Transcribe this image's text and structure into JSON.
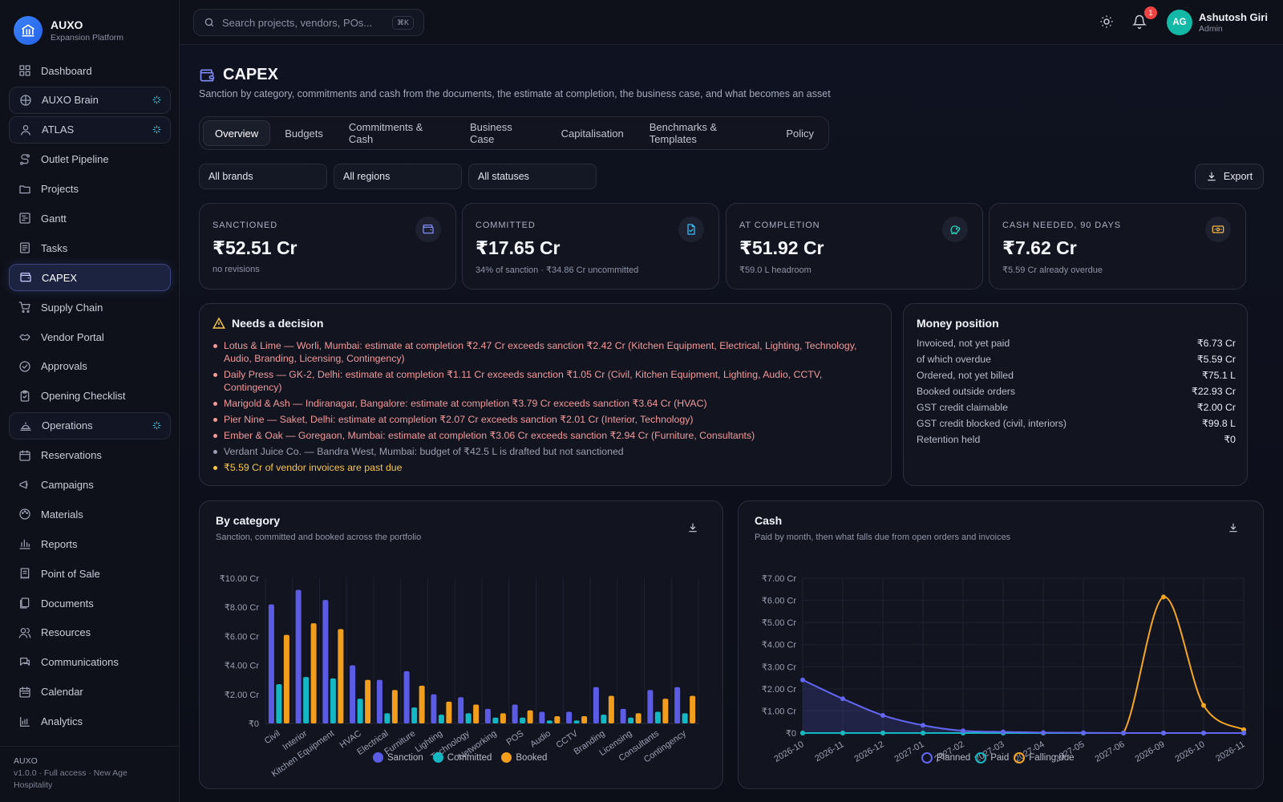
{
  "brand": {
    "name": "AUXO",
    "subtitle": "Expansion Platform"
  },
  "nav": [
    {
      "label": "Dashboard",
      "icon": "grid-icon"
    },
    {
      "label": "AUXO Brain",
      "icon": "brain-icon",
      "boxed": true,
      "spark": true
    },
    {
      "label": "ATLAS",
      "icon": "user-icon",
      "boxed": true,
      "spark": true
    },
    {
      "label": "Outlet Pipeline",
      "icon": "route-icon"
    },
    {
      "label": "Projects",
      "icon": "folder-icon"
    },
    {
      "label": "Gantt",
      "icon": "gantt-icon"
    },
    {
      "label": "Tasks",
      "icon": "tasks-icon"
    },
    {
      "label": "CAPEX",
      "icon": "wallet-icon",
      "active": true
    },
    {
      "label": "Supply Chain",
      "icon": "cart-icon"
    },
    {
      "label": "Vendor Portal",
      "icon": "handshake-icon"
    },
    {
      "label": "Approvals",
      "icon": "check-circle-icon"
    },
    {
      "label": "Opening Checklist",
      "icon": "clipboard-icon"
    },
    {
      "label": "Operations",
      "icon": "bell-service-icon",
      "boxed": true,
      "spark": true
    },
    {
      "label": "Reservations",
      "icon": "calendar-check-icon"
    },
    {
      "label": "Campaigns",
      "icon": "megaphone-icon"
    },
    {
      "label": "Materials",
      "icon": "palette-icon"
    },
    {
      "label": "Reports",
      "icon": "bar-chart-icon"
    },
    {
      "label": "Point of Sale",
      "icon": "receipt-icon"
    },
    {
      "label": "Documents",
      "icon": "files-icon"
    },
    {
      "label": "Resources",
      "icon": "users-icon"
    },
    {
      "label": "Communications",
      "icon": "chat-icon"
    },
    {
      "label": "Calendar",
      "icon": "calendar-icon"
    },
    {
      "label": "Analytics",
      "icon": "analytics-icon"
    }
  ],
  "footer": {
    "name": "AUXO",
    "meta": "v1.0.0 · Full access · New Age Hospitality"
  },
  "topbar": {
    "search_placeholder": "Search projects, vendors, POs...",
    "search_shortcut": "⌘K",
    "notification_count": "1",
    "user_initials": "AG",
    "user_name": "Ashutosh Giri",
    "user_role": "Admin"
  },
  "page": {
    "title": "CAPEX",
    "subtitle": "Sanction by category, commitments and cash from the documents, the estimate at completion, the business case, and what becomes an asset"
  },
  "tabs": [
    "Overview",
    "Budgets",
    "Commitments & Cash",
    "Business Case",
    "Capitalisation",
    "Benchmarks & Templates",
    "Policy"
  ],
  "active_tab": "Overview",
  "filters": {
    "brand": "All brands",
    "region": "All regions",
    "status": "All statuses"
  },
  "export_label": "Export",
  "kpis": [
    {
      "label": "SANCTIONED",
      "value": "₹52.51 Cr",
      "note": "no revisions",
      "icon": "wallet-icon",
      "color": "#818cf8"
    },
    {
      "label": "COMMITTED",
      "value": "₹17.65 Cr",
      "note": "34% of sanction · ₹34.86 Cr uncommitted",
      "icon": "file-check-icon",
      "color": "#38bdf8"
    },
    {
      "label": "AT COMPLETION",
      "value": "₹51.92 Cr",
      "note": "₹59.0 L headroom",
      "icon": "piggy-bank-icon",
      "color": "#2dd4bf"
    },
    {
      "label": "CASH NEEDED, 90 DAYS",
      "value": "₹7.62 Cr",
      "note": "₹5.59 Cr already overdue",
      "icon": "banknote-icon",
      "color": "#f5b942"
    }
  ],
  "decision": {
    "title": "Needs a decision",
    "items": [
      {
        "text": "Lotus & Lime — Worli, Mumbai: estimate at completion ₹2.47 Cr exceeds sanction ₹2.42 Cr (Kitchen Equipment, Electrical, Lighting, Technology, Audio, Branding, Licensing, Contingency)",
        "tone": "red"
      },
      {
        "text": "Daily Press — GK-2, Delhi: estimate at completion ₹1.11 Cr exceeds sanction ₹1.05 Cr (Civil, Kitchen Equipment, Lighting, Audio, CCTV, Contingency)",
        "tone": "red"
      },
      {
        "text": "Marigold & Ash — Indiranagar, Bangalore: estimate at completion ₹3.79 Cr exceeds sanction ₹3.64 Cr (HVAC)",
        "tone": "red"
      },
      {
        "text": "Pier Nine — Saket, Delhi: estimate at completion ₹2.07 Cr exceeds sanction ₹2.01 Cr (Interior, Technology)",
        "tone": "red"
      },
      {
        "text": "Ember & Oak — Goregaon, Mumbai: estimate at completion ₹3.06 Cr exceeds sanction ₹2.94 Cr (Furniture, Consultants)",
        "tone": "red"
      },
      {
        "text": "Verdant Juice Co. — Bandra West, Mumbai: budget of ₹42.5 L is drafted but not sanctioned",
        "tone": "gray"
      },
      {
        "text": "₹5.59 Cr of vendor invoices are past due",
        "tone": "yellow"
      }
    ]
  },
  "money": {
    "title": "Money position",
    "rows": [
      {
        "label": "Invoiced, not yet paid",
        "value": "₹6.73 Cr"
      },
      {
        "label": "of which overdue",
        "value": "₹5.59 Cr"
      },
      {
        "label": "Ordered, not yet billed",
        "value": "₹75.1 L"
      },
      {
        "label": "Booked outside orders",
        "value": "₹22.93 Cr"
      },
      {
        "label": "GST credit claimable",
        "value": "₹2.00 Cr"
      },
      {
        "label": "GST credit blocked (civil, interiors)",
        "value": "₹99.8 L"
      },
      {
        "label": "Retention held",
        "value": "₹0"
      }
    ]
  },
  "chart_data": [
    {
      "type": "bar",
      "title": "By category",
      "subtitle": "Sanction, committed and booked across the portfolio",
      "categories": [
        "Civil",
        "Interior",
        "Kitchen Equipment",
        "HVAC",
        "Electrical",
        "Furniture",
        "Lighting",
        "Technology",
        "Networking",
        "POS",
        "Audio",
        "CCTV",
        "Branding",
        "Licensing",
        "Consultants",
        "Contingency"
      ],
      "series": [
        {
          "name": "Sanction",
          "color": "#5b5be6",
          "values": [
            8.2,
            9.2,
            8.5,
            4.0,
            3.0,
            3.6,
            2.0,
            1.8,
            1.0,
            1.3,
            0.8,
            0.8,
            2.5,
            1.0,
            2.3,
            2.5
          ]
        },
        {
          "name": "Committed",
          "color": "#14b8c4",
          "values": [
            2.7,
            3.2,
            3.1,
            1.7,
            0.7,
            1.1,
            0.6,
            0.7,
            0.4,
            0.4,
            0.2,
            0.2,
            0.6,
            0.4,
            0.8,
            0.7
          ]
        },
        {
          "name": "Booked",
          "color": "#f29d1c",
          "values": [
            6.1,
            6.9,
            6.5,
            3.0,
            2.3,
            2.6,
            1.5,
            1.3,
            0.7,
            0.9,
            0.5,
            0.5,
            1.9,
            0.7,
            1.7,
            1.9
          ]
        }
      ],
      "yticks": [
        "₹0",
        "₹2.00 Cr",
        "₹4.00 Cr",
        "₹6.00 Cr",
        "₹8.00 Cr",
        "₹10.00 Cr"
      ],
      "ylim": [
        0,
        10
      ],
      "grid": true,
      "legend": "bottom-center"
    },
    {
      "type": "line",
      "title": "Cash",
      "subtitle": "Paid by month, then what falls due from open orders and invoices",
      "x": [
        "2026-10",
        "2026-11",
        "2026-12",
        "2027-01",
        "2027-02",
        "2027-03",
        "2027-04",
        "2027-05",
        "2027-06",
        "2026-09",
        "2026-10",
        "2026-11"
      ],
      "series": [
        {
          "name": "Planned",
          "color": "#6366f1",
          "values": [
            2.4,
            1.55,
            0.8,
            0.35,
            0.1,
            0.05,
            0.02,
            0.01,
            0.0,
            0.0,
            0.0,
            0.0
          ]
        },
        {
          "name": "Paid",
          "color": "#14b8c4",
          "values": [
            0,
            0,
            0,
            0,
            0,
            0,
            0,
            0,
            0,
            0,
            0,
            0
          ]
        },
        {
          "name": "Falling due",
          "color": "#f5a623",
          "values": [
            0,
            0,
            0,
            0,
            0,
            0,
            0,
            0,
            0,
            6.15,
            1.25,
            0.15
          ]
        }
      ],
      "yticks": [
        "₹0",
        "₹1.00 Cr",
        "₹2.00 Cr",
        "₹3.00 Cr",
        "₹4.00 Cr",
        "₹5.00 Cr",
        "₹6.00 Cr",
        "₹7.00 Cr"
      ],
      "ylim": [
        0,
        7
      ],
      "grid": true,
      "legend": "bottom-center"
    }
  ]
}
